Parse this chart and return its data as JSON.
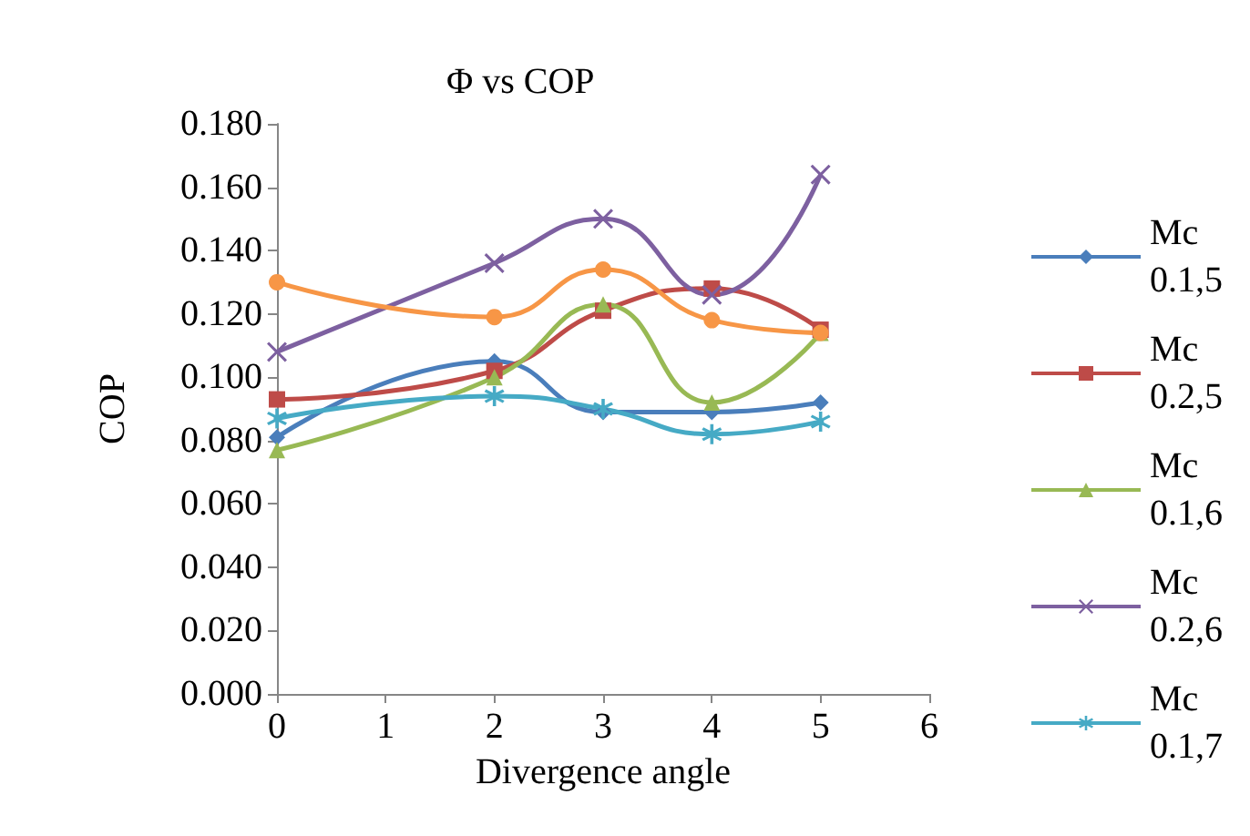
{
  "chart_data": {
    "type": "line",
    "title": "Φ vs COP",
    "xlabel": "Divergence angle",
    "ylabel": "COP",
    "x": [
      0,
      2,
      3,
      4,
      5
    ],
    "xlim": [
      0,
      6
    ],
    "xticks": [
      0,
      1,
      2,
      3,
      4,
      5,
      6
    ],
    "ylim": [
      0,
      0.18
    ],
    "yticks": [
      {
        "value": 0,
        "label": "0.000"
      },
      {
        "value": 0.02,
        "label": "0.020"
      },
      {
        "value": 0.04,
        "label": "0.040"
      },
      {
        "value": 0.06,
        "label": "0.060"
      },
      {
        "value": 0.08,
        "label": "0.080"
      },
      {
        "value": 0.1,
        "label": "0.100"
      },
      {
        "value": 0.12,
        "label": "0.120"
      },
      {
        "value": 0.14,
        "label": "0.140"
      },
      {
        "value": 0.16,
        "label": "0.160"
      },
      {
        "value": 0.18,
        "label": "0.180"
      }
    ],
    "grid": false,
    "legend": "right",
    "series": [
      {
        "name": "Mc 0.1,5",
        "color": "#4a7ebb",
        "marker": "diamond",
        "values": [
          0.081,
          0.105,
          0.089,
          0.089,
          0.092
        ]
      },
      {
        "name": "Mc 0.2,5",
        "color": "#be4b48",
        "marker": "square",
        "values": [
          0.093,
          0.102,
          0.121,
          0.128,
          0.115
        ]
      },
      {
        "name": "Mc 0.1,6",
        "color": "#98b954",
        "marker": "triangle",
        "values": [
          0.077,
          0.1,
          0.123,
          0.092,
          0.114
        ]
      },
      {
        "name": "Mc 0.2,6",
        "color": "#7d60a0",
        "marker": "cross",
        "values": [
          0.108,
          0.136,
          0.15,
          0.126,
          0.164
        ]
      },
      {
        "name": "Mc 0.1,7",
        "color": "#46aac5",
        "marker": "star",
        "values": [
          0.087,
          0.094,
          0.09,
          0.082,
          0.086
        ]
      },
      {
        "color": "#f79646",
        "marker": "circle",
        "values": [
          0.13,
          0.119,
          0.134,
          0.118,
          0.114
        ]
      }
    ]
  }
}
